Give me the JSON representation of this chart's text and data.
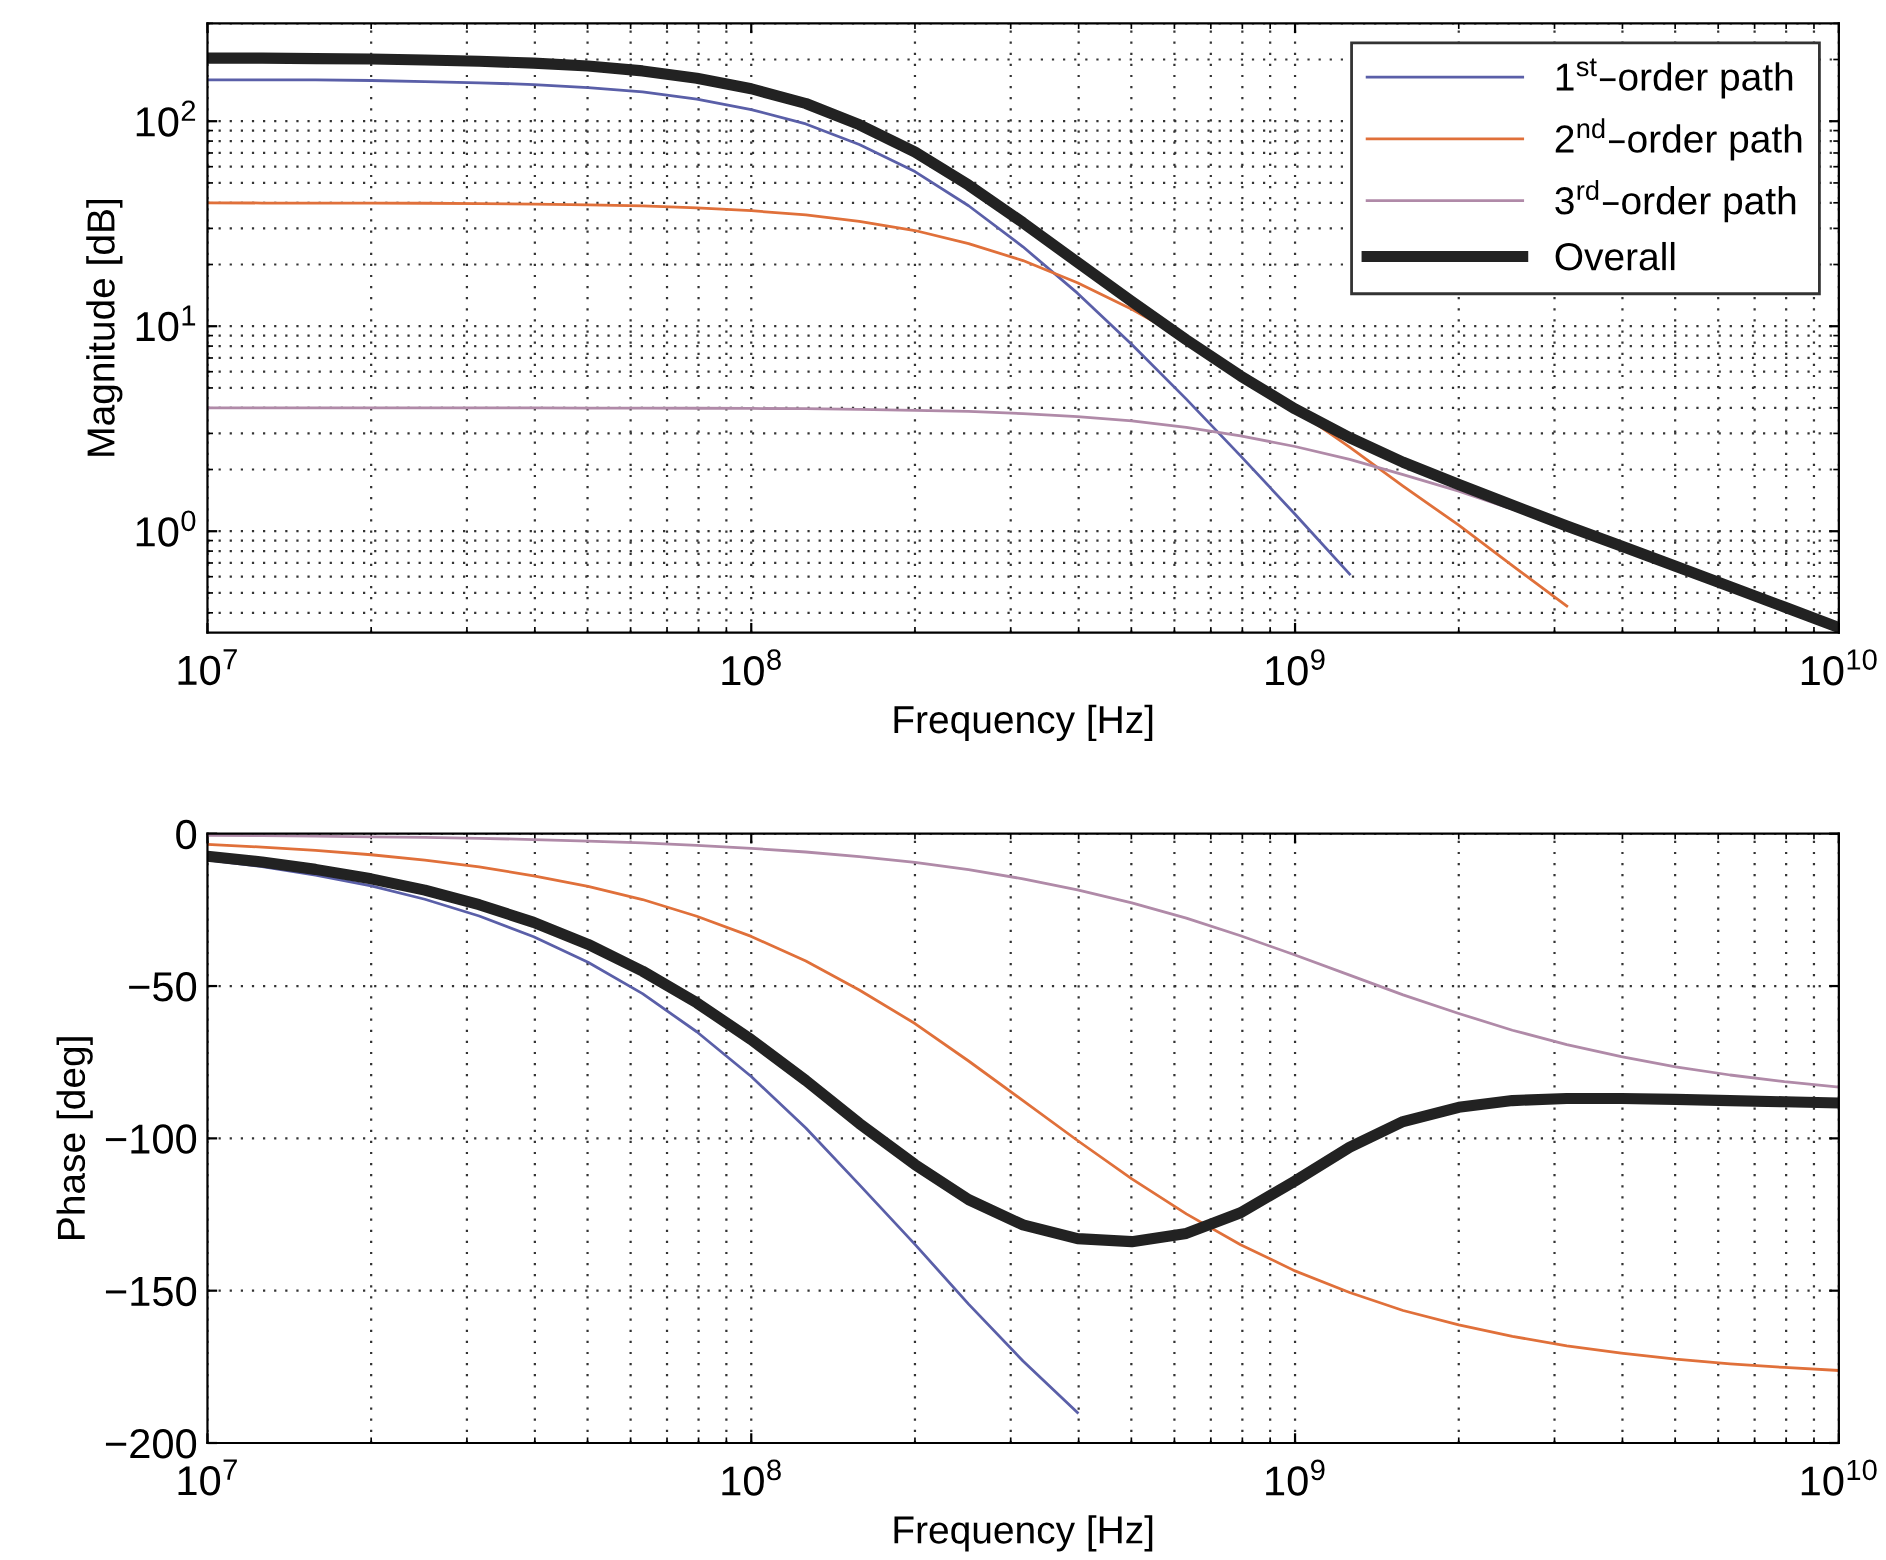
{
  "chart_data": [
    {
      "type": "line",
      "log": "xy",
      "grid": true,
      "legend": "top right",
      "xlabel": "Frequency [Hz]",
      "ylabel": "Magnitude [dB]",
      "xlim": [
        10000000.0,
        10000000000.0
      ],
      "xticks": [
        {
          "value": 10000000.0,
          "label": "10$^{7}$"
        },
        {
          "value": 100000000.0,
          "label": "10$^{8}$"
        },
        {
          "value": 1000000000.0,
          "label": "10$^{9}$"
        },
        {
          "value": 10000000000.0,
          "label": "10$^{10}$"
        }
      ],
      "ylim": [
        0.32,
        300
      ],
      "yticks": [
        {
          "value": 1,
          "label": "10$^{0}$"
        },
        {
          "value": 10,
          "label": "10$^{1}$"
        },
        {
          "value": 100,
          "label": "10$^{2}$"
        }
      ],
      "x": [
        10000000.0,
        12600000.0,
        15800000.0,
        20000000.0,
        25100000.0,
        31600000.0,
        39800000.0,
        50100000.0,
        63100000.0,
        79400000.0,
        100000000.0,
        126000000.0,
        158000000.0,
        200000000.0,
        251000000.0,
        316000000.0,
        398000000.0,
        501000000.0,
        631000000.0,
        794000000.0,
        1000000000.0,
        1260000000.0,
        1580000000.0,
        2000000000.0,
        2510000000.0,
        3160000000.0,
        3980000000.0,
        5010000000.0,
        6310000000.0,
        7940000000.0,
        10000000000.0
      ],
      "series": [
        {
          "name": "1$^{st}$–order path",
          "color": "#5a5fa8",
          "values": [
            159,
            159,
            159,
            158,
            156,
            154,
            151,
            146,
            139,
            128,
            114,
            97,
            77,
            56.8,
            38.7,
            24.4,
            14.5,
            8.15,
            4.41,
            2.33,
            1.21,
            0.618,
            null,
            null,
            null,
            null,
            null,
            null,
            null,
            null,
            null
          ]
        },
        {
          "name": "2$^{nd}$–order path",
          "color": "#e0703a",
          "values": [
            40,
            39.9,
            39.9,
            39.9,
            39.8,
            39.6,
            39.4,
            39.1,
            38.6,
            37.8,
            36.6,
            34.9,
            32.5,
            29.3,
            25.3,
            20.9,
            16.3,
            12.1,
            8.59,
            5.89,
            3.93,
            2.57,
            1.66,
            1.07,
            0.679,
            0.431,
            null,
            null,
            null,
            null,
            null
          ]
        },
        {
          "name": "3$^{rd}$–order path",
          "color": "#b08aa8",
          "values": [
            4,
            4,
            4,
            4,
            4,
            4,
            4,
            3.99,
            3.99,
            3.98,
            3.97,
            3.96,
            3.93,
            3.89,
            3.84,
            3.75,
            3.62,
            3.45,
            3.21,
            2.92,
            2.59,
            2.24,
            1.89,
            1.57,
            1.28,
            1.04,
            0.835,
            0.669,
            0.534,
            0.426,
            0.339
          ]
        },
        {
          "name": "Overall",
          "color": "#222222",
          "values": [
            203,
            203,
            202,
            201,
            199,
            196,
            192,
            186,
            176,
            162,
            144,
            122,
            96.2,
            70.8,
            48.8,
            32,
            20.5,
            13.2,
            8.59,
            5.72,
            3.95,
            2.86,
            2.17,
            1.69,
            1.34,
            1.06,
            0.847,
            0.675,
            0.537,
            0.427,
            0.339
          ]
        }
      ]
    },
    {
      "type": "line",
      "log": "x",
      "grid": true,
      "xlabel": "Frequency [Hz]",
      "ylabel": "Phase [deg]",
      "xlim": [
        10000000.0,
        10000000000.0
      ],
      "xticks": [
        {
          "value": 10000000.0,
          "label": "10$^{7}$"
        },
        {
          "value": 100000000.0,
          "label": "10$^{8}$"
        },
        {
          "value": 1000000000.0,
          "label": "10$^{9}$"
        },
        {
          "value": 10000000000.0,
          "label": "10$^{10}$"
        }
      ],
      "ylim": [
        -200,
        0
      ],
      "yticks": [
        {
          "value": -200,
          "label": "−200"
        },
        {
          "value": -150,
          "label": "−150"
        },
        {
          "value": -100,
          "label": "−100"
        },
        {
          "value": -50,
          "label": "−50"
        },
        0
      ],
      "x": [
        10000000.0,
        12600000.0,
        15800000.0,
        20000000.0,
        25100000.0,
        31600000.0,
        39800000.0,
        50100000.0,
        63100000.0,
        79400000.0,
        100000000.0,
        126000000.0,
        158000000.0,
        200000000.0,
        251000000.0,
        316000000.0,
        398000000.0,
        501000000.0,
        631000000.0,
        794000000.0,
        1000000000.0,
        1260000000.0,
        1580000000.0,
        2000000000.0,
        2510000000.0,
        3160000000.0,
        3980000000.0,
        5010000000.0,
        6310000000.0,
        7940000000.0,
        10000000000.0
      ],
      "series": [
        {
          "color": "#5a5fa8",
          "values": [
            -8.6,
            -10.8,
            -13.6,
            -17.1,
            -21.5,
            -27.0,
            -33.8,
            -42.2,
            -52.5,
            -65.0,
            -79.7,
            -96.6,
            -115.2,
            -134.8,
            -154.4,
            -173.1,
            -190.0,
            null,
            null,
            null,
            null,
            null,
            null,
            null,
            null,
            null,
            null,
            null,
            null,
            null,
            null
          ]
        },
        {
          "color": "#e0703a",
          "values": [
            -3.5,
            -4.4,
            -5.5,
            -6.9,
            -8.7,
            -10.9,
            -13.8,
            -17.3,
            -21.6,
            -27.1,
            -33.7,
            -41.8,
            -51.3,
            -62.3,
            -74.6,
            -87.6,
            -100.7,
            -113.3,
            -124.8,
            -134.9,
            -143.5,
            -150.6,
            -156.5,
            -161.2,
            -165.0,
            -168.1,
            -170.5,
            -172.5,
            -174.0,
            -175.2,
            -176.2
          ]
        },
        {
          "color": "#b08aa8",
          "values": [
            -0.5,
            -0.6,
            -0.8,
            -1.0,
            -1.2,
            -1.5,
            -1.9,
            -2.4,
            -3.0,
            -3.8,
            -4.8,
            -6.0,
            -7.5,
            -9.4,
            -11.8,
            -14.8,
            -18.4,
            -22.7,
            -27.7,
            -33.5,
            -39.8,
            -46.4,
            -52.9,
            -59.0,
            -64.5,
            -69.2,
            -73.2,
            -76.5,
            -79.2,
            -81.4,
            -83.2
          ]
        },
        {
          "color": "#222222",
          "values": [
            -7.4,
            -9.3,
            -11.7,
            -14.8,
            -18.5,
            -23.3,
            -29.1,
            -36.3,
            -45.1,
            -55.5,
            -67.6,
            -81.0,
            -95.1,
            -108.6,
            -120.1,
            -128.4,
            -132.9,
            -133.9,
            -131.2,
            -124.4,
            -114.0,
            -102.9,
            -94.5,
            -89.8,
            -87.6,
            -86.9,
            -86.9,
            -87.2,
            -87.6,
            -88.0,
            -88.4
          ]
        }
      ]
    }
  ]
}
